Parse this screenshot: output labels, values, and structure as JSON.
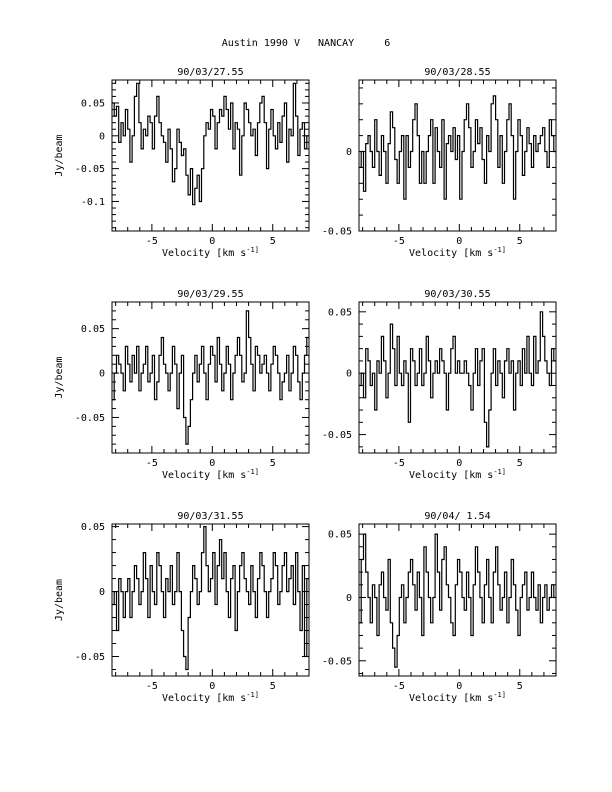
{
  "title": "Austin 1990 V   NANCAY     6",
  "chart_data": [
    {
      "type": "line",
      "title": "90/03/27.55",
      "xlabel": "Velocity [km s^-1]",
      "ylabel": "Jy/beam",
      "xlim": [
        -8.3,
        8
      ],
      "ylim": [
        -0.145,
        0.085
      ],
      "xticks": [
        -5,
        0,
        5
      ],
      "yticks": [
        0.05,
        0,
        -0.05,
        -0.1
      ],
      "ytick_labels": [
        "0.05",
        "0",
        "-0.05",
        "-0.1"
      ],
      "series": [
        {
          "values": [
            0.05,
            0.03,
            0.045,
            -0.01,
            0.02,
            0.0,
            0.04,
            0.01,
            -0.04,
            0.0,
            0.06,
            0.08,
            0.02,
            -0.02,
            0.01,
            0.0,
            0.03,
            0.02,
            -0.02,
            0.03,
            0.06,
            0.02,
            0.0,
            -0.01,
            -0.04,
            0.01,
            -0.02,
            -0.07,
            -0.05,
            0.01,
            -0.01,
            -0.03,
            -0.02,
            -0.06,
            -0.09,
            -0.05,
            -0.105,
            -0.08,
            -0.06,
            -0.1,
            -0.05,
            0.0,
            0.02,
            0.01,
            0.04,
            0.03,
            -0.02,
            0.02,
            0.04,
            0.03,
            0.06,
            0.04,
            0.01,
            0.05,
            -0.02,
            0.02,
            0.01,
            -0.06,
            0.0,
            0.05,
            0.04,
            0.02,
            0.0,
            0.01,
            -0.03,
            0.02,
            0.05,
            0.06,
            0.02,
            -0.05,
            0.01,
            0.04,
            0.0,
            -0.02,
            0.02,
            -0.01,
            0.03,
            0.05,
            -0.04,
            0.01,
            0.0,
            0.08,
            0.03,
            -0.03,
            0.01,
            0.02,
            -0.02,
            0.0
          ]
        }
      ]
    },
    {
      "type": "line",
      "title": "90/03/28.55",
      "xlabel": "Velocity [km s^-1]",
      "ylabel": "",
      "xlim": [
        -8.3,
        8
      ],
      "ylim": [
        -0.05,
        0.045
      ],
      "xticks": [
        -5,
        0,
        5
      ],
      "yticks": [
        0,
        -0.05
      ],
      "ytick_labels": [
        "0",
        "-0.05"
      ],
      "series": [
        {
          "values": [
            -0.01,
            0.0,
            -0.025,
            0.005,
            0.01,
            0.0,
            -0.01,
            0.02,
            0.0,
            -0.015,
            0.01,
            0.0,
            -0.02,
            0.005,
            0.025,
            0.015,
            -0.005,
            -0.02,
            0.0,
            0.01,
            -0.03,
            0.01,
            -0.01,
            0.0,
            0.02,
            0.03,
            0.01,
            -0.02,
            0.0,
            -0.02,
            0.0,
            0.01,
            0.02,
            -0.02,
            0.015,
            0.0,
            -0.01,
            0.02,
            -0.03,
            0.005,
            0.01,
            0.0,
            0.015,
            -0.005,
            0.01,
            -0.03,
            0.0,
            0.02,
            0.03,
            0.015,
            -0.01,
            0.0,
            0.02,
            0.005,
            0.015,
            -0.005,
            -0.02,
            0.01,
            0.0,
            0.03,
            0.035,
            0.02,
            -0.01,
            0.01,
            -0.02,
            0.0,
            0.02,
            0.03,
            0.01,
            -0.03,
            0.0,
            0.02,
            0.01,
            -0.015,
            0.0,
            0.015,
            0.005,
            -0.01,
            0.01,
            0.0,
            0.005,
            0.01,
            0.015,
            0.0,
            -0.01,
            0.02,
            0.01,
            0.0
          ]
        }
      ]
    },
    {
      "type": "line",
      "title": "90/03/29.55",
      "xlabel": "Velocity [km s^-1]",
      "ylabel": "Jy/beam",
      "xlim": [
        -8.3,
        8
      ],
      "ylim": [
        -0.09,
        0.08
      ],
      "xticks": [
        -5,
        0,
        5
      ],
      "yticks": [
        0.05,
        0,
        -0.05
      ],
      "ytick_labels": [
        "0.05",
        "0",
        "-0.05"
      ],
      "series": [
        {
          "values": [
            -0.03,
            0.0,
            0.02,
            0.01,
            0.0,
            -0.02,
            0.03,
            0.01,
            -0.01,
            0.02,
            0.0,
            0.03,
            -0.02,
            0.0,
            0.01,
            0.03,
            -0.01,
            0.0,
            0.02,
            -0.03,
            -0.01,
            0.02,
            0.04,
            0.01,
            0.0,
            -0.02,
            0.0,
            0.03,
            0.01,
            -0.04,
            0.0,
            0.02,
            -0.05,
            -0.08,
            -0.06,
            -0.03,
            0.0,
            0.02,
            -0.01,
            0.01,
            0.03,
            0.0,
            -0.03,
            0.01,
            0.03,
            0.02,
            -0.01,
            0.04,
            0.01,
            -0.02,
            0.0,
            0.03,
            0.01,
            -0.03,
            0.0,
            0.02,
            0.04,
            0.02,
            -0.01,
            0.0,
            0.07,
            0.04,
            0.01,
            -0.02,
            0.03,
            0.02,
            0.0,
            0.01,
            0.02,
            0.0,
            -0.02,
            0.01,
            0.03,
            0.02,
            0.0,
            -0.03,
            -0.01,
            0.0,
            0.02,
            -0.02,
            0.0,
            0.03,
            0.02,
            -0.01,
            -0.03,
            0.0,
            0.02,
            0.04
          ]
        }
      ]
    },
    {
      "type": "line",
      "title": "90/03/30.55",
      "xlabel": "Velocity [km s^-1]",
      "ylabel": "",
      "xlim": [
        -8.3,
        8
      ],
      "ylim": [
        -0.065,
        0.058
      ],
      "xticks": [
        -5,
        0,
        5
      ],
      "yticks": [
        0.05,
        0,
        -0.05
      ],
      "ytick_labels": [
        "0.05",
        "0",
        "-0.05"
      ],
      "series": [
        {
          "values": [
            -0.01,
            0.0,
            -0.02,
            0.02,
            0.01,
            -0.01,
            0.0,
            -0.03,
            0.01,
            0.0,
            0.03,
            0.01,
            -0.02,
            0.0,
            0.04,
            0.02,
            -0.01,
            0.03,
            0.0,
            -0.01,
            0.01,
            0.0,
            -0.04,
            0.02,
            0.01,
            -0.01,
            0.0,
            0.02,
            -0.01,
            0.0,
            0.03,
            0.01,
            -0.02,
            0.0,
            0.01,
            0.0,
            0.02,
            0.01,
            0.0,
            -0.03,
            0.0,
            0.02,
            0.03,
            0.0,
            0.01,
            0.0,
            0.0,
            0.01,
            0.0,
            -0.01,
            -0.03,
            0.0,
            0.02,
            -0.01,
            0.01,
            0.02,
            -0.04,
            -0.06,
            -0.03,
            0.0,
            0.02,
            -0.01,
            0.01,
            0.0,
            -0.02,
            0.01,
            0.02,
            0.0,
            0.01,
            -0.03,
            0.0,
            0.01,
            -0.01,
            0.02,
            0.0,
            0.03,
            0.0,
            -0.01,
            0.03,
            0.0,
            0.01,
            0.05,
            0.03,
            0.01,
            0.0,
            -0.01,
            0.02,
            0.01
          ]
        }
      ]
    },
    {
      "type": "line",
      "title": "90/03/31.55",
      "xlabel": "Velocity [km s^-1]",
      "ylabel": "Jy/beam",
      "xlim": [
        -8.3,
        8
      ],
      "ylim": [
        -0.065,
        0.052
      ],
      "xticks": [
        -5,
        0,
        5
      ],
      "yticks": [
        0.05,
        0,
        -0.05
      ],
      "ytick_labels": [
        "0.05",
        "0",
        "-0.05"
      ],
      "series": [
        {
          "values": [
            -0.01,
            0.0,
            -0.03,
            0.01,
            0.0,
            -0.02,
            0.0,
            0.01,
            -0.02,
            0.0,
            0.02,
            0.01,
            -0.01,
            0.0,
            0.03,
            0.01,
            -0.02,
            0.02,
            0.0,
            -0.01,
            0.03,
            0.02,
            0.0,
            -0.02,
            0.01,
            0.0,
            0.02,
            -0.01,
            0.0,
            0.03,
            0.0,
            -0.03,
            -0.05,
            -0.06,
            -0.02,
            0.0,
            0.02,
            0.01,
            -0.01,
            0.0,
            0.03,
            0.05,
            0.02,
            0.0,
            0.01,
            0.03,
            -0.01,
            0.02,
            0.04,
            0.01,
            0.03,
            0.0,
            -0.02,
            0.01,
            0.02,
            -0.03,
            0.0,
            0.02,
            0.03,
            0.01,
            0.0,
            -0.01,
            0.02,
            0.0,
            -0.02,
            0.01,
            0.03,
            0.02,
            0.0,
            -0.02,
            0.0,
            0.01,
            0.03,
            0.02,
            -0.01,
            0.0,
            0.02,
            0.03,
            0.0,
            0.01,
            0.02,
            -0.01,
            0.03,
            0.0,
            -0.03,
            0.02,
            -0.05,
            0.01
          ]
        }
      ]
    },
    {
      "type": "line",
      "title": "90/04/ 1.54",
      "xlabel": "Velocity [km s^-1]",
      "ylabel": "",
      "xlim": [
        -8.3,
        8
      ],
      "ylim": [
        -0.062,
        0.058
      ],
      "xticks": [
        -5,
        0,
        5
      ],
      "yticks": [
        0.05,
        0,
        -0.05
      ],
      "ytick_labels": [
        "0.05",
        "0",
        "-0.05"
      ],
      "series": [
        {
          "values": [
            -0.02,
            0.03,
            0.05,
            0.02,
            0.0,
            -0.02,
            0.01,
            0.0,
            -0.03,
            0.01,
            0.02,
            0.0,
            -0.01,
            0.03,
            -0.02,
            -0.04,
            -0.055,
            -0.03,
            0.0,
            0.01,
            -0.02,
            0.0,
            0.02,
            0.03,
            0.01,
            -0.01,
            0.02,
            0.0,
            -0.03,
            0.04,
            0.02,
            0.0,
            -0.02,
            0.0,
            0.05,
            0.02,
            -0.01,
            0.03,
            0.04,
            0.01,
            0.0,
            -0.02,
            -0.03,
            0.01,
            0.03,
            0.02,
            0.0,
            -0.01,
            0.02,
            0.0,
            -0.03,
            0.01,
            0.04,
            0.02,
            0.0,
            -0.02,
            0.01,
            0.03,
            0.0,
            -0.02,
            0.02,
            0.04,
            0.01,
            -0.01,
            0.0,
            0.02,
            -0.02,
            0.0,
            0.03,
            0.01,
            -0.01,
            -0.03,
            0.0,
            0.01,
            0.02,
            -0.01,
            0.0,
            0.02,
            0.0,
            -0.01,
            0.01,
            -0.02,
            0.0,
            0.01,
            -0.01,
            0.0,
            0.01,
            0.0
          ]
        }
      ]
    }
  ]
}
